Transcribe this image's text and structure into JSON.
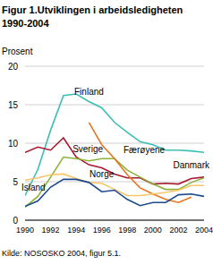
{
  "chart_data": {
    "type": "line",
    "title": "Figur 1.Utviklingen i arbeidsledigheten 1990-2004",
    "y_label": "Prosent",
    "source": "Kilde: NOSOSKO 2004, figur 5.1.",
    "x": [
      1990,
      1991,
      1992,
      1993,
      1994,
      1995,
      1996,
      1997,
      1998,
      1999,
      2000,
      2001,
      2002,
      2003,
      2004
    ],
    "xlim": [
      1990,
      2004
    ],
    "xticks": [
      1990,
      1992,
      1994,
      1996,
      1998,
      2000,
      2002,
      2004
    ],
    "ylim": [
      0,
      20
    ],
    "yticks": [
      0,
      5,
      10,
      15,
      20
    ],
    "grid": true,
    "series": [
      {
        "name": "Finland",
        "color": "#3bbfb5",
        "values": [
          3.2,
          6.6,
          11.7,
          16.2,
          16.4,
          15.4,
          14.6,
          12.7,
          11.4,
          10.2,
          9.8,
          9.1,
          9.1,
          9.0,
          8.8
        ]
      },
      {
        "name": "Danmark",
        "color": "#a6192e",
        "values": [
          8.8,
          9.5,
          9.1,
          10.7,
          8.2,
          7.2,
          6.8,
          6.0,
          5.5,
          5.5,
          4.7,
          4.8,
          4.7,
          5.4,
          5.6
        ]
      },
      {
        "name": "Sverige",
        "color": "#8cb33a",
        "values": [
          1.7,
          3.1,
          5.6,
          8.2,
          8.0,
          7.7,
          8.0,
          8.0,
          6.5,
          5.6,
          4.7,
          4.0,
          4.0,
          4.9,
          5.5
        ]
      },
      {
        "name": "Færøyene",
        "color": "#e8761e",
        "values": [
          null,
          null,
          null,
          null,
          null,
          12.7,
          9.8,
          8.0,
          5.9,
          4.2,
          3.4,
          2.7,
          2.3,
          3.0,
          null
        ]
      },
      {
        "name": "Norge",
        "color": "#f7c56a",
        "values": [
          5.2,
          5.5,
          5.9,
          6.0,
          5.4,
          4.9,
          4.8,
          4.0,
          3.2,
          3.2,
          3.4,
          3.6,
          3.9,
          4.5,
          4.5
        ]
      },
      {
        "name": "Island",
        "color": "#1c4a8c",
        "values": [
          1.8,
          2.5,
          4.3,
          5.3,
          5.3,
          4.9,
          3.7,
          3.9,
          2.7,
          1.9,
          2.3,
          2.3,
          3.3,
          3.4,
          3.1
        ]
      }
    ]
  }
}
